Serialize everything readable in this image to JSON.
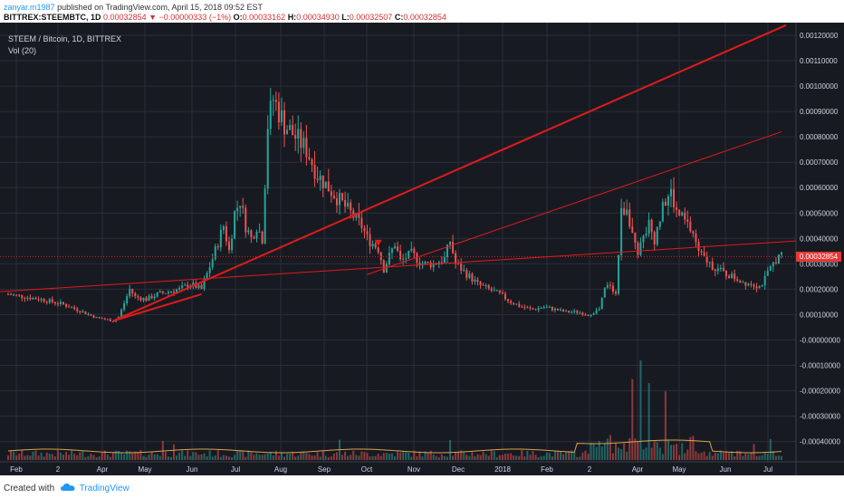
{
  "header": {
    "author": "zanyar.m1987",
    "published_text": "published on TradingView.com, April 15, 2018 09:52 EST",
    "symbol": "BITTREX:STEEMBTC, 1D",
    "last": "0.00032854",
    "change": "▼ −0.00000333 (−1%)",
    "o_label": "O:",
    "o_value": "0.00033162",
    "h_label": "H:",
    "h_value": "0.00034930",
    "l_label": "L:",
    "l_value": "0.00032507",
    "c_label": "C:",
    "c_value": "0.00032854"
  },
  "legend": {
    "series": "STEEM / Bitcoin, 1D, BITTREX",
    "volume": "Vol (20)"
  },
  "price_label": "0.00032854",
  "footer": {
    "created_with": "Created with",
    "brand": "TradingView"
  },
  "colors": {
    "background": "#181a22",
    "grid": "#2a2e39",
    "up": "#26a69a",
    "down": "#ef5350",
    "trendline": "#e01b1b",
    "price_tag": "#e53935",
    "volume_ma": "#d8a24a"
  },
  "chart_data": {
    "type": "candlestick",
    "x_labels": [
      "Feb",
      "2",
      "Apr",
      "May",
      "Jun",
      "Jul",
      "Aug",
      "Sep",
      "Oct",
      "Nov",
      "Dec",
      "2018",
      "Feb",
      "2",
      "Apr",
      "May",
      "Jun",
      "Jul"
    ],
    "y_labels": [
      "0.00120000",
      "0.00110000",
      "0.00100000",
      "0.00090000",
      "0.00080000",
      "0.00070000",
      "0.00060000",
      "0.00050000",
      "0.00040000",
      "0.00030000",
      "0.00020000",
      "0.00010000",
      "-0.00000000",
      "-0.00010000",
      "-0.00020000",
      "-0.00030000",
      "-0.00040000"
    ],
    "ylim": [
      -0.00048,
      0.00125
    ],
    "current_price": 0.00032854,
    "price_path": [
      [
        0,
        0.00018
      ],
      [
        12,
        0.00016
      ],
      [
        20,
        0.00014
      ],
      [
        26,
        0.000115
      ],
      [
        32,
        8.75e-05
      ],
      [
        38,
        7.5e-05
      ],
      [
        40,
        9e-05
      ],
      [
        44,
        0.0002
      ],
      [
        46,
        0.00017
      ],
      [
        50,
        0.00016
      ],
      [
        54,
        0.00018
      ],
      [
        58,
        0.00019
      ],
      [
        62,
        0.0002
      ],
      [
        66,
        0.00022
      ],
      [
        70,
        0.0002
      ],
      [
        74,
        0.00032
      ],
      [
        78,
        0.00045
      ],
      [
        80,
        0.00035
      ],
      [
        82,
        0.0005
      ],
      [
        84,
        0.00055
      ],
      [
        86,
        0.00045
      ],
      [
        88,
        0.0004
      ],
      [
        90,
        0.00045
      ],
      [
        92,
        0.0004
      ],
      [
        94,
        0.00085
      ],
      [
        96,
        0.00095
      ],
      [
        98,
        0.0009
      ],
      [
        100,
        0.00085
      ],
      [
        104,
        0.0008
      ],
      [
        108,
        0.00075
      ],
      [
        112,
        0.00065
      ],
      [
        116,
        0.0006
      ],
      [
        120,
        0.00055
      ],
      [
        124,
        0.0005
      ],
      [
        128,
        0.00045
      ],
      [
        130,
        0.0004
      ],
      [
        134,
        0.00036
      ],
      [
        136,
        0.00028
      ],
      [
        138,
        0.00033
      ],
      [
        140,
        0.00038
      ],
      [
        142,
        0.00031
      ],
      [
        146,
        0.00034
      ],
      [
        150,
        0.0003
      ],
      [
        154,
        0.0003
      ],
      [
        158,
        0.00032
      ],
      [
        160,
        0.00039
      ],
      [
        162,
        0.0003
      ],
      [
        166,
        0.00026
      ],
      [
        170,
        0.00022
      ],
      [
        174,
        0.0002
      ],
      [
        178,
        0.00018
      ],
      [
        182,
        0.00015
      ],
      [
        186,
        0.00013
      ],
      [
        190,
        0.00012
      ],
      [
        194,
        0.00013
      ],
      [
        198,
        0.00012
      ],
      [
        202,
        0.00011
      ],
      [
        206,
        0.00011
      ],
      [
        210,
        0.0001
      ],
      [
        214,
        0.00012
      ],
      [
        216,
        0.0002
      ],
      [
        218,
        0.00022
      ],
      [
        220,
        0.00018
      ],
      [
        222,
        0.0005
      ],
      [
        224,
        0.00053
      ],
      [
        226,
        0.00042
      ],
      [
        228,
        0.00035
      ],
      [
        230,
        0.0004
      ],
      [
        232,
        0.00045
      ],
      [
        234,
        0.0004
      ],
      [
        236,
        0.00048
      ],
      [
        238,
        0.00055
      ],
      [
        240,
        0.00058
      ],
      [
        242,
        0.0005
      ],
      [
        244,
        0.00048
      ],
      [
        248,
        0.00042
      ],
      [
        250,
        0.00034
      ],
      [
        254,
        0.0003
      ],
      [
        258,
        0.00027
      ],
      [
        262,
        0.00025
      ],
      [
        266,
        0.00023
      ],
      [
        270,
        0.00022
      ],
      [
        272,
        0.00021
      ],
      [
        274,
        0.00024
      ],
      [
        276,
        0.00028
      ],
      [
        278,
        0.00032
      ],
      [
        280,
        0.00033
      ]
    ]
  }
}
